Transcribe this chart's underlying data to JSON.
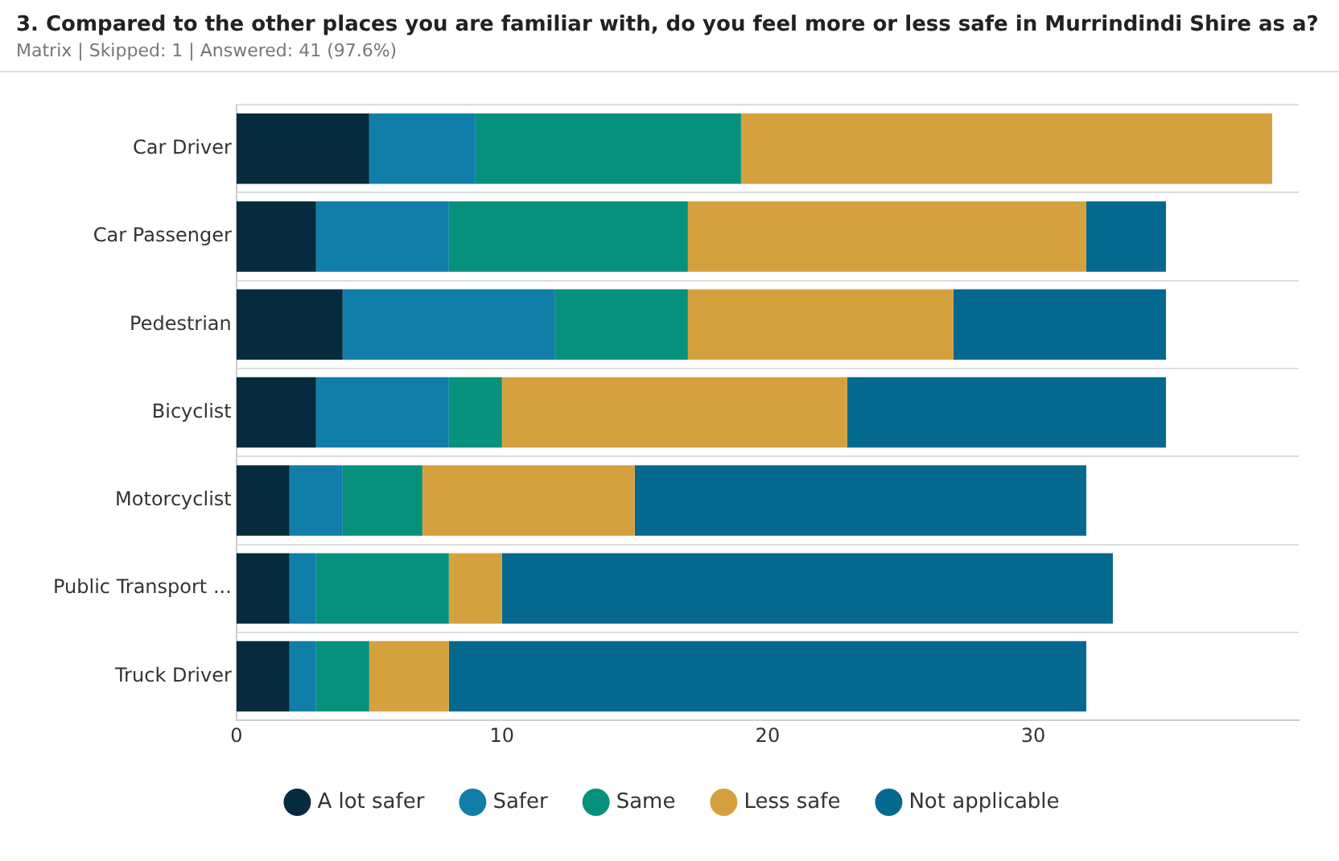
{
  "chart_data": {
    "type": "bar",
    "orientation": "horizontal",
    "stacked": true,
    "title": "3. Compared to the other places you are familiar with, do you feel more or less safe in Murrindindi Shire as a?",
    "subtitle": "Matrix | Skipped: 1 | Answered: 41 (97.6%)",
    "categories": [
      "Car Driver",
      "Car Passenger",
      "Pedestrian",
      "Bicyclist",
      "Motorcyclist",
      "Public Transport ...",
      "Truck Driver"
    ],
    "series": [
      {
        "name": "A lot safer",
        "color": "#072b3e",
        "values": [
          5,
          3,
          4,
          3,
          2,
          2,
          2
        ]
      },
      {
        "name": "Safer",
        "color": "#107ea8",
        "values": [
          4,
          5,
          8,
          5,
          2,
          1,
          1
        ]
      },
      {
        "name": "Same",
        "color": "#06917c",
        "values": [
          10,
          9,
          5,
          2,
          3,
          5,
          2
        ]
      },
      {
        "name": "Less safe",
        "color": "#d5a13f",
        "values": [
          20,
          15,
          10,
          13,
          8,
          2,
          3
        ]
      },
      {
        "name": "Not applicable",
        "color": "#05698f",
        "values": [
          0,
          3,
          8,
          12,
          17,
          23,
          24
        ]
      }
    ],
    "xlim": [
      0,
      40
    ],
    "xticks": [
      0,
      10,
      20,
      30
    ],
    "grid": "y",
    "legend": "bottom"
  }
}
